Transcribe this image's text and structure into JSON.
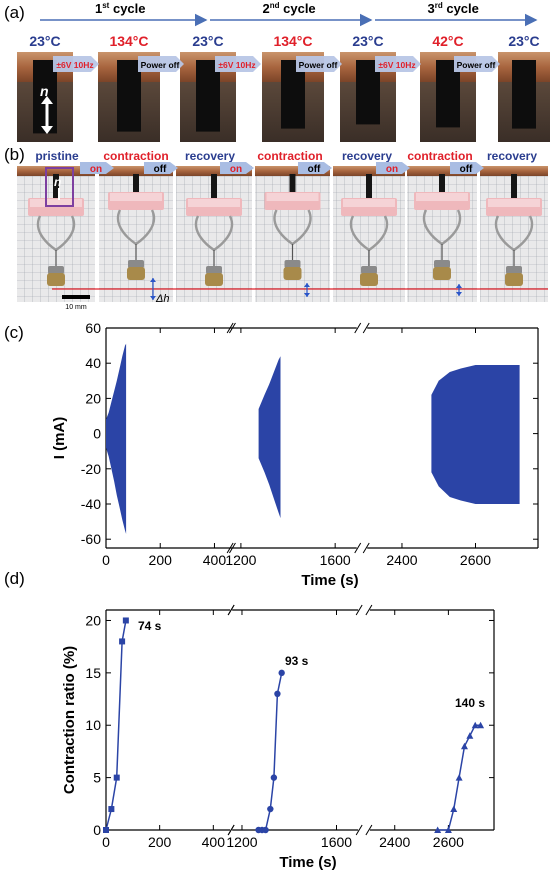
{
  "panels": {
    "a": "(a)",
    "b": "(b)",
    "c": "(c)",
    "d": "(d)"
  },
  "panel_a": {
    "cycles": [
      {
        "label": "1",
        "sup": "st",
        "suffix": " cycle"
      },
      {
        "label": "2",
        "sup": "nd",
        "suffix": " cycle"
      },
      {
        "label": "3",
        "sup": "rd",
        "suffix": " cycle"
      }
    ],
    "temperatures": [
      "23°C",
      "134°C",
      "23°C",
      "134°C",
      "23°C",
      "42°C",
      "23°C"
    ],
    "transitions": [
      "±6V 10Hz",
      "Power off",
      "±6V 10Hz",
      "Power off",
      "±6V 10Hz",
      "Power off"
    ],
    "n_label": "n",
    "colors": {
      "cold": "#2a3d8f",
      "hot": "#e0202a",
      "arrow": "#4a6fb5"
    }
  },
  "panel_b": {
    "states": [
      "pristine",
      "contraction",
      "recovery",
      "contraction",
      "recovery",
      "contraction",
      "recovery"
    ],
    "switches": [
      "on",
      "off",
      "on",
      "off",
      "on",
      "off"
    ],
    "n_label": "n",
    "scale_bar": "10 mm",
    "delta_label": "Δh"
  },
  "chart_data": [
    {
      "type": "area",
      "ylabel": "I (mA)",
      "xlabel": "Time (s)",
      "ylim": [
        -65,
        60
      ],
      "y_ticks": [
        "60",
        "40",
        "20",
        "0",
        "-20",
        "-40",
        "-60"
      ],
      "x_ticks": [
        "0",
        "200",
        "400",
        "1200",
        "1600",
        "2400",
        "2600"
      ],
      "x_breaks": [
        [
          470,
          1150
        ],
        [
          1700,
          2300
        ]
      ],
      "color": "#2b44a6",
      "segments": [
        {
          "x": [
            0,
            10,
            20,
            30,
            40,
            50,
            60,
            70,
            74
          ],
          "upper": [
            8,
            12,
            18,
            24,
            30,
            37,
            44,
            50,
            51
          ],
          "lower": [
            -8,
            -13,
            -20,
            -27,
            -35,
            -42,
            -49,
            -55,
            -57
          ]
        },
        {
          "x": [
            1275,
            1300,
            1320,
            1340,
            1360,
            1368
          ],
          "upper": [
            14,
            22,
            28,
            35,
            42,
            44
          ],
          "lower": [
            -14,
            -22,
            -29,
            -37,
            -45,
            -48
          ]
        },
        {
          "x": [
            2480,
            2500,
            2530,
            2560,
            2600,
            2650,
            2700,
            2720
          ],
          "upper": [
            22,
            30,
            35,
            37,
            39,
            39,
            39,
            39
          ],
          "lower": [
            -22,
            -30,
            -36,
            -38,
            -40,
            -40,
            -40,
            -40
          ]
        }
      ]
    },
    {
      "type": "scatter",
      "ylabel": "Contraction ratio (%)",
      "xlabel": "Time (s)",
      "ylim": [
        0,
        21
      ],
      "y_ticks": [
        "20",
        "15",
        "10",
        "5",
        "0"
      ],
      "x_ticks": [
        "0",
        "200",
        "400",
        "1200",
        "1600",
        "2400",
        "2600"
      ],
      "x_breaks": [
        [
          470,
          1150
        ],
        [
          1700,
          2300
        ]
      ],
      "color": "#2b44a6",
      "series": [
        {
          "marker": "square",
          "x": [
            0,
            20,
            40,
            60,
            74
          ],
          "y": [
            0,
            2,
            5,
            18,
            20
          ],
          "annotation": "74 s"
        },
        {
          "marker": "circle",
          "x": [
            1270,
            1285,
            1300,
            1320,
            1335,
            1350,
            1368
          ],
          "y": [
            0,
            0,
            0,
            2,
            5,
            13,
            15
          ],
          "annotation": "93 s"
        },
        {
          "marker": "triangle",
          "x": [
            2560,
            2600,
            2620,
            2640,
            2660,
            2680,
            2700,
            2720
          ],
          "y": [
            0,
            0,
            2,
            5,
            8,
            9,
            10,
            10
          ],
          "annotation": "140 s"
        }
      ]
    }
  ]
}
